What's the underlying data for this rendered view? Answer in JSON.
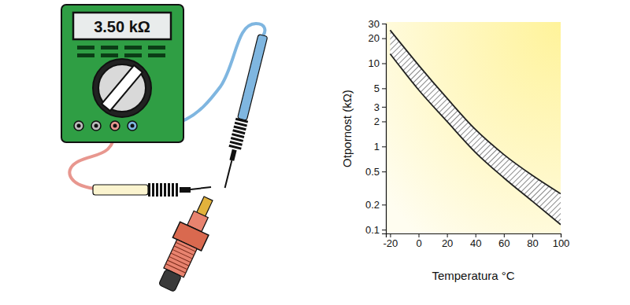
{
  "meter": {
    "display": "3.50 kΩ"
  },
  "chart_data": {
    "type": "band",
    "x_label": "Temperatura °C",
    "y_label": "Otpornost (kΩ)",
    "x": [
      -20,
      0,
      20,
      40,
      60,
      80,
      100
    ],
    "series": [
      {
        "values": [
          13,
          4.8,
          2.0,
          0.85,
          0.42,
          0.22,
          0.115
        ]
      },
      {
        "values": [
          25,
          9.5,
          3.8,
          1.6,
          0.8,
          0.45,
          0.27
        ]
      }
    ],
    "color": "#222222",
    "log": "y",
    "xlim": [
      -23,
      100
    ],
    "xticks": [
      -20,
      0,
      20,
      40,
      60,
      80,
      100
    ],
    "ylim": [
      0.09,
      30
    ],
    "yticks": [
      0.1,
      0.2,
      0.5,
      1,
      2,
      3,
      5,
      10,
      20,
      30
    ]
  }
}
